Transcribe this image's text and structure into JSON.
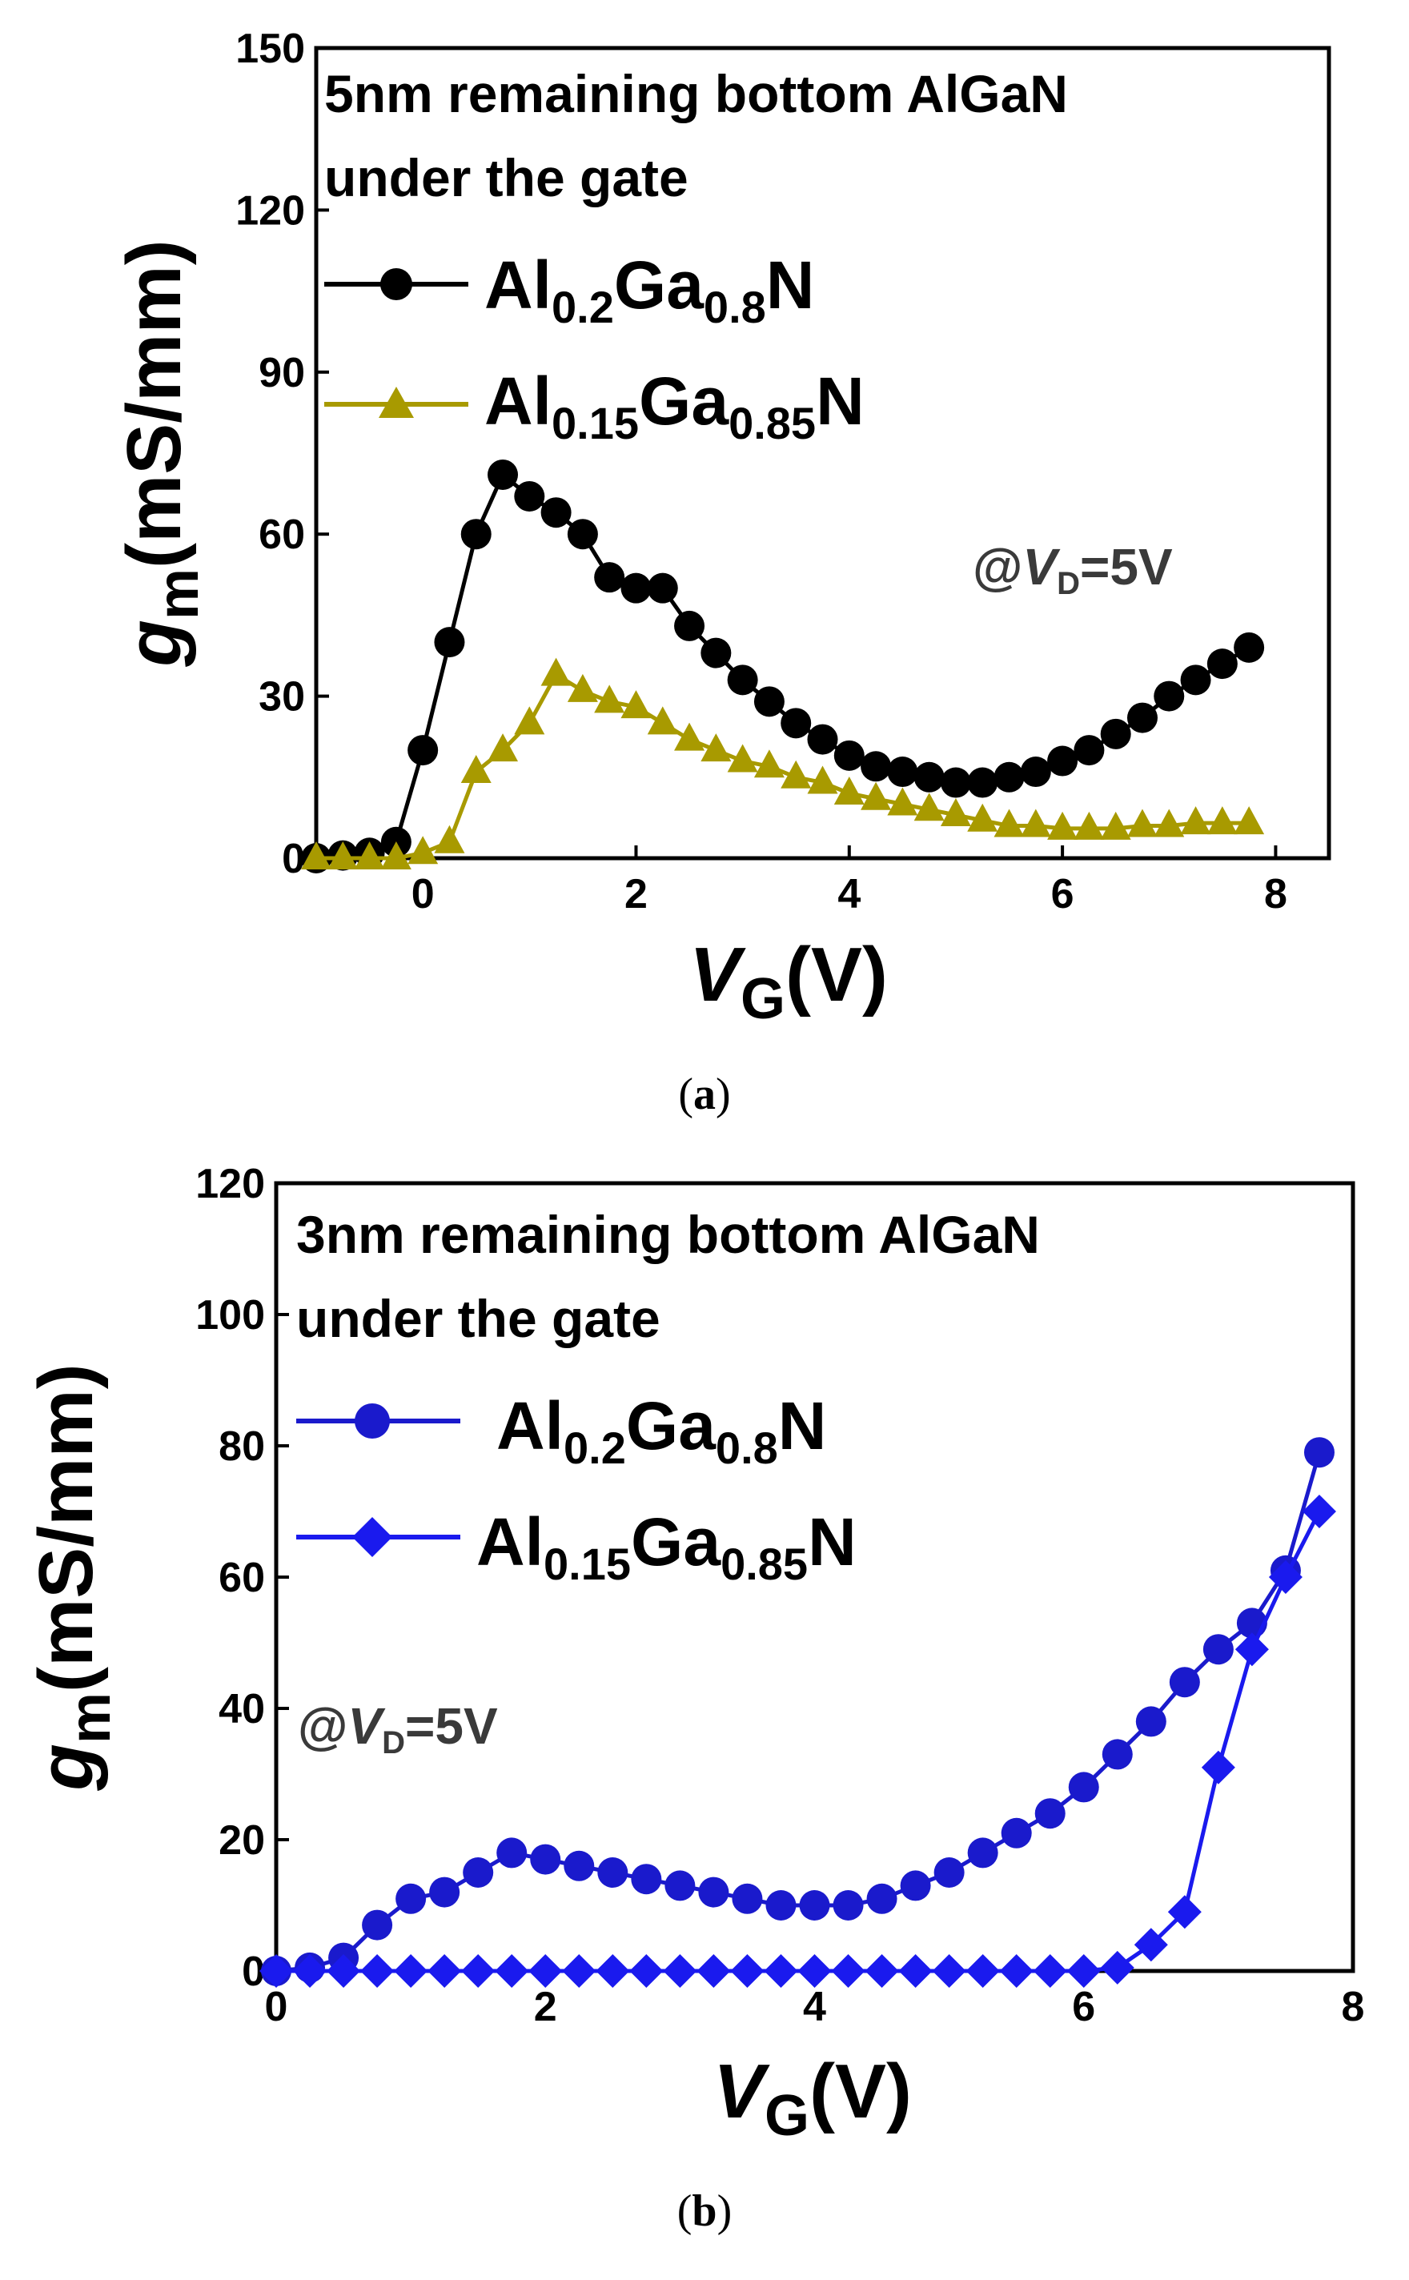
{
  "chart_data": [
    {
      "type": "line",
      "panel": "(a)",
      "caption_letter": "a",
      "annotation_lines": [
        "5nm remaining bottom AlGaN",
        "under the gate"
      ],
      "condition": {
        "prefix": "@",
        "var": "V",
        "sub": "D",
        "suffix": "=5V"
      },
      "xlabel": {
        "var": "V",
        "sub": "G",
        "unit": "(V)"
      },
      "ylabel": {
        "var": "g",
        "sub": "m",
        "unit": "(mS/mm)"
      },
      "xlim": [
        -1,
        8.5
      ],
      "ylim": [
        0,
        150
      ],
      "xticks": [
        "0",
        "2",
        "4",
        "6",
        "8"
      ],
      "yticks": [
        "0",
        "30",
        "60",
        "90",
        "120",
        "150"
      ],
      "series": [
        {
          "name": "Al0.2Ga0.8N",
          "legend": {
            "el": "Al",
            "x": "0.2",
            "ga": "Ga",
            "y": "0.8",
            "n": "N"
          },
          "color": "#000000",
          "marker": "circle",
          "x": [
            -1.0,
            -0.75,
            -0.5,
            -0.25,
            0.0,
            0.25,
            0.5,
            0.75,
            1.0,
            1.25,
            1.5,
            1.75,
            2.0,
            2.25,
            2.5,
            2.75,
            3.0,
            3.25,
            3.5,
            3.75,
            4.0,
            4.25,
            4.5,
            4.75,
            5.0,
            5.25,
            5.5,
            5.75,
            6.0,
            6.25,
            6.5,
            6.75,
            7.0,
            7.25,
            7.5,
            7.75
          ],
          "y": [
            0,
            0.5,
            1,
            3,
            20,
            40,
            60,
            71,
            67,
            64,
            60,
            52,
            50,
            50,
            43,
            38,
            33,
            29,
            25,
            22,
            19,
            17,
            16,
            15,
            14,
            14,
            15,
            16,
            18,
            20,
            23,
            26,
            30,
            33,
            36,
            39
          ]
        },
        {
          "name": "Al0.15Ga0.85N",
          "legend": {
            "el": "Al",
            "x": "0.15",
            "ga": "Ga",
            "y": "0.85",
            "n": "N"
          },
          "color": "#a89a00",
          "marker": "triangle",
          "x": [
            -1.0,
            -0.75,
            -0.5,
            -0.25,
            0.0,
            0.25,
            0.5,
            0.75,
            1.0,
            1.25,
            1.5,
            1.75,
            2.0,
            2.25,
            2.5,
            2.75,
            3.0,
            3.25,
            3.5,
            3.75,
            4.0,
            4.25,
            4.5,
            4.75,
            5.0,
            5.25,
            5.5,
            5.75,
            6.0,
            6.25,
            6.5,
            6.75,
            7.0,
            7.25,
            7.5,
            7.75
          ],
          "y": [
            0,
            0,
            0,
            0,
            1,
            3,
            16,
            20,
            25,
            34,
            31,
            29,
            28,
            25,
            22,
            20,
            18,
            17,
            15,
            14,
            12,
            11,
            10,
            9,
            8,
            7,
            6,
            6,
            5.5,
            5.5,
            5.5,
            6,
            6,
            6.5,
            6.5,
            6.5
          ]
        }
      ]
    },
    {
      "type": "line",
      "panel": "(b)",
      "caption_letter": "b",
      "annotation_lines": [
        "3nm remaining bottom AlGaN",
        "under the gate"
      ],
      "condition": {
        "prefix": "@",
        "var": "V",
        "sub": "D",
        "suffix": "=5V"
      },
      "xlabel": {
        "var": "V",
        "sub": "G",
        "unit": "(V)"
      },
      "ylabel": {
        "var": "g",
        "sub": "m",
        "unit": "(mS/mm)"
      },
      "xlim": [
        0,
        8
      ],
      "ylim": [
        0,
        120
      ],
      "xticks": [
        "0",
        "2",
        "4",
        "6",
        "8"
      ],
      "yticks": [
        "0",
        "20",
        "40",
        "60",
        "80",
        "100",
        "120"
      ],
      "series": [
        {
          "name": "Al0.2Ga0.8N",
          "legend": {
            "el": "Al",
            "x": "0.2",
            "ga": "Ga",
            "y": "0.8",
            "n": "N"
          },
          "color": "#1a1acc",
          "marker": "circle",
          "x": [
            0.0,
            0.25,
            0.5,
            0.75,
            1.0,
            1.25,
            1.5,
            1.75,
            2.0,
            2.25,
            2.5,
            2.75,
            3.0,
            3.25,
            3.5,
            3.75,
            4.0,
            4.25,
            4.5,
            4.75,
            5.0,
            5.25,
            5.5,
            5.75,
            6.0,
            6.25,
            6.5,
            6.75,
            7.0,
            7.25,
            7.5,
            7.75
          ],
          "y": [
            0,
            0.5,
            2,
            7,
            11,
            12,
            15,
            18,
            17,
            16,
            15,
            14,
            13,
            12,
            11,
            10,
            10,
            10,
            11,
            13,
            15,
            18,
            21,
            24,
            28,
            33,
            38,
            44,
            49,
            53,
            61,
            79
          ]
        },
        {
          "name": "Al0.15Ga0.85N",
          "legend": {
            "el": "Al",
            "x": "0.15",
            "ga": "Ga",
            "y": "0.85",
            "n": "N"
          },
          "color": "#1a1aee",
          "marker": "diamond",
          "x": [
            0.0,
            0.25,
            0.5,
            0.75,
            1.0,
            1.25,
            1.5,
            1.75,
            2.0,
            2.25,
            2.5,
            2.75,
            3.0,
            3.25,
            3.5,
            3.75,
            4.0,
            4.25,
            4.5,
            4.75,
            5.0,
            5.25,
            5.5,
            5.75,
            6.0,
            6.25,
            6.5,
            6.75,
            7.0,
            7.25,
            7.5,
            7.75
          ],
          "y": [
            0,
            0,
            0,
            0,
            0,
            0,
            0,
            0,
            0,
            0,
            0,
            0,
            0,
            0,
            0,
            0,
            0,
            0,
            0,
            0,
            0,
            0,
            0,
            0,
            0,
            0.5,
            4,
            9,
            31,
            49,
            60,
            70
          ]
        }
      ]
    }
  ]
}
